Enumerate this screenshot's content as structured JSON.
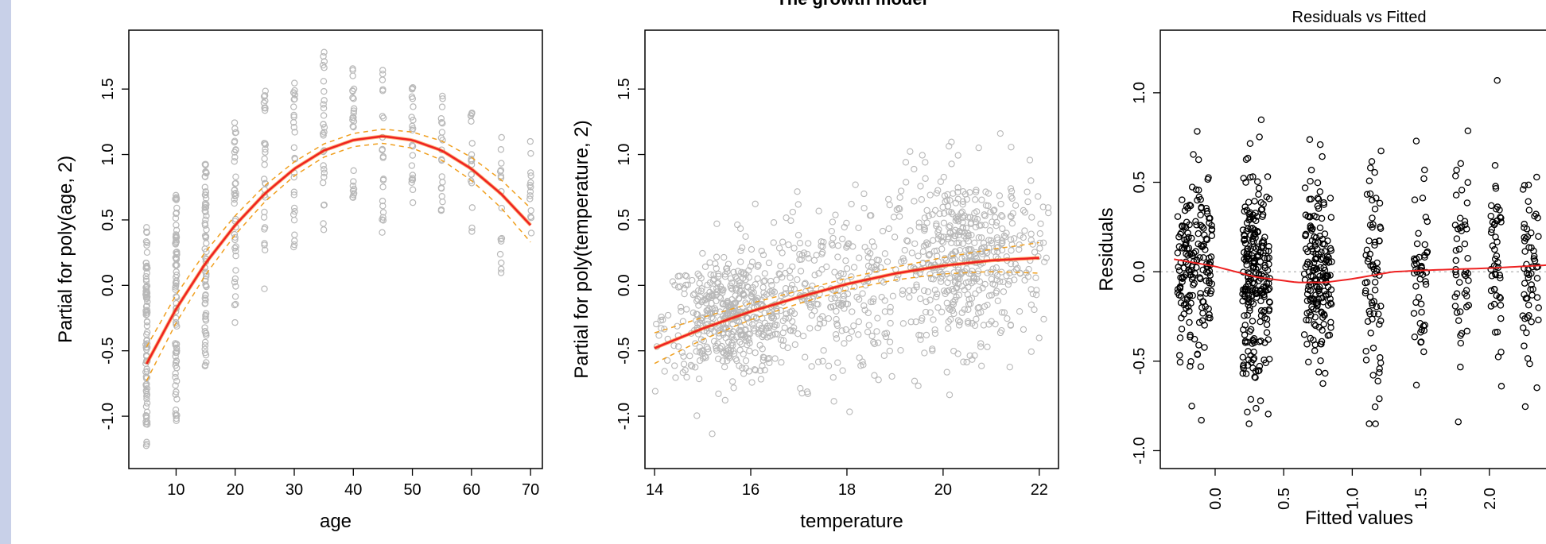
{
  "page": {
    "sidebar_color": "#c8d0e8"
  },
  "chart_data": [
    {
      "type": "scatter",
      "xlabel": "age",
      "ylabel": "Partial for poly(age, 2)",
      "xlim": [
        2,
        72
      ],
      "ylim": [
        -1.4,
        1.95
      ],
      "xticks": [
        10,
        20,
        30,
        40,
        50,
        60,
        70
      ],
      "yticks": [
        -1.0,
        -0.5,
        0.0,
        0.5,
        1.0,
        1.5
      ],
      "ytick_labels": [
        "-1.0",
        "-0.5",
        "0.0",
        "0.5",
        "1.0",
        "1.5"
      ],
      "point_color": "#b8b8b8",
      "columns": [
        {
          "x": 5,
          "ymin": -1.25,
          "ymax": 0.45,
          "n": 90
        },
        {
          "x": 10,
          "ymin": -1.1,
          "ymax": 0.7,
          "n": 80
        },
        {
          "x": 15,
          "ymin": -0.65,
          "ymax": 0.98,
          "n": 70
        },
        {
          "x": 20,
          "ymin": -0.3,
          "ymax": 1.33,
          "n": 40
        },
        {
          "x": 25,
          "ymin": -0.05,
          "ymax": 1.5,
          "n": 30
        },
        {
          "x": 30,
          "ymin": 0.15,
          "ymax": 1.57,
          "n": 28
        },
        {
          "x": 35,
          "ymin": 0.42,
          "ymax": 1.82,
          "n": 28
        },
        {
          "x": 40,
          "ymin": 0.65,
          "ymax": 1.76,
          "n": 26
        },
        {
          "x": 45,
          "ymin": 0.38,
          "ymax": 1.67,
          "n": 22
        },
        {
          "x": 50,
          "ymin": 0.58,
          "ymax": 1.57,
          "n": 22
        },
        {
          "x": 55,
          "ymin": 0.55,
          "ymax": 1.45,
          "n": 20
        },
        {
          "x": 60,
          "ymin": 0.35,
          "ymax": 1.35,
          "n": 18
        },
        {
          "x": 65,
          "ymin": 0.08,
          "ymax": 1.22,
          "n": 16
        },
        {
          "x": 70,
          "ymin": 0.15,
          "ymax": 1.17,
          "n": 14
        }
      ],
      "fit": {
        "color": "#ee2222",
        "x": [
          5,
          10,
          15,
          20,
          25,
          30,
          35,
          40,
          45,
          50,
          55,
          60,
          65,
          70
        ],
        "y": [
          -0.6,
          -0.18,
          0.17,
          0.46,
          0.7,
          0.89,
          1.03,
          1.11,
          1.14,
          1.11,
          1.03,
          0.89,
          0.7,
          0.46
        ]
      },
      "band": {
        "color": "#f0a020",
        "width": 0.05
      }
    },
    {
      "type": "scatter",
      "title": "The growth model",
      "xlabel": "temperature",
      "ylabel": "Partial for poly(temperature, 2)",
      "xlim": [
        13.8,
        22.4
      ],
      "ylim": [
        -1.4,
        1.95
      ],
      "xticks": [
        14,
        16,
        18,
        20,
        22
      ],
      "yticks": [
        -1.0,
        -0.5,
        0.0,
        0.5,
        1.0,
        1.5
      ],
      "ytick_labels": [
        "-1.0",
        "-0.5",
        "0.0",
        "0.5",
        "1.0",
        "1.5"
      ],
      "point_color": "#b8b8b8",
      "clouds": [
        {
          "cx": 15.6,
          "cy": -0.25,
          "sx": 0.7,
          "sy": 0.22,
          "n": 480
        },
        {
          "cx": 17.6,
          "cy": -0.05,
          "sx": 0.9,
          "sy": 0.35,
          "n": 260
        },
        {
          "cx": 20.5,
          "cy": 0.2,
          "sx": 0.8,
          "sy": 0.33,
          "n": 520
        }
      ],
      "fit": {
        "color": "#ee2222",
        "x": [
          14,
          15,
          16,
          17,
          18,
          19,
          20,
          21,
          22
        ],
        "y": [
          -0.48,
          -0.33,
          -0.2,
          -0.09,
          0.01,
          0.09,
          0.15,
          0.19,
          0.21
        ]
      },
      "band": {
        "color": "#f0a020",
        "width": 0.045
      }
    },
    {
      "type": "scatter",
      "title": "Residuals vs Fitted",
      "xlabel": "Fitted values",
      "ylabel": "Residuals",
      "xlim": [
        -0.4,
        2.5
      ],
      "ylim": [
        -1.1,
        1.35
      ],
      "xticks": [
        0.0,
        0.5,
        1.0,
        1.5,
        2.0
      ],
      "xtick_labels": [
        "0.0",
        "0.5",
        "1.0",
        "1.5",
        "2.0"
      ],
      "yticks": [
        -1.0,
        -0.5,
        0.0,
        0.5,
        1.0
      ],
      "ytick_labels": [
        "-1.0",
        "-0.5",
        "0.0",
        "0.5",
        "1.0"
      ],
      "point_color": "#000000",
      "groups": [
        {
          "cx": -0.15,
          "sx": 0.13,
          "sy": 0.25,
          "n": 180
        },
        {
          "cx": 0.3,
          "sx": 0.1,
          "sy": 0.3,
          "n": 240
        },
        {
          "cx": 0.75,
          "sx": 0.1,
          "sy": 0.27,
          "n": 180
        },
        {
          "cx": 1.15,
          "sx": 0.06,
          "sy": 0.32,
          "n": 70
        },
        {
          "cx": 1.5,
          "sx": 0.05,
          "sy": 0.3,
          "n": 50
        },
        {
          "cx": 1.8,
          "sx": 0.05,
          "sy": 0.3,
          "n": 50
        },
        {
          "cx": 2.05,
          "sx": 0.04,
          "sy": 0.3,
          "n": 50
        },
        {
          "cx": 2.3,
          "sx": 0.06,
          "sy": 0.3,
          "n": 60
        }
      ],
      "loess": {
        "color": "#ee2222",
        "x": [
          -0.3,
          0.0,
          0.3,
          0.6,
          0.8,
          1.0,
          1.3,
          1.6,
          2.0,
          2.5
        ],
        "y": [
          0.07,
          0.03,
          -0.03,
          -0.06,
          -0.06,
          -0.04,
          0.0,
          0.01,
          0.02,
          0.04
        ]
      },
      "zero_line_color": "#aaaaaa"
    }
  ]
}
